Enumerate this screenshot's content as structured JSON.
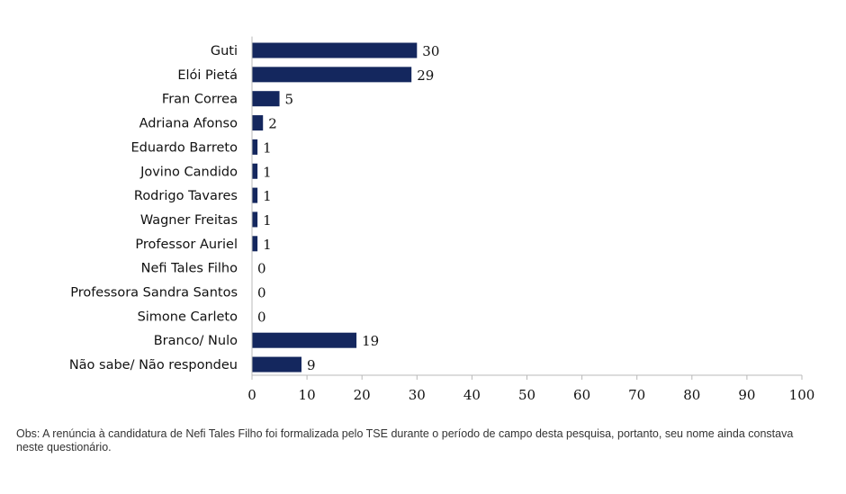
{
  "chart_data": {
    "type": "bar",
    "orientation": "horizontal",
    "categories": [
      "Guti",
      "Elói Pietá",
      "Fran Correa",
      "Adriana Afonso",
      "Eduardo Barreto",
      "Jovino Candido",
      "Rodrigo Tavares",
      "Wagner Freitas",
      "Professor Auriel",
      "Nefi Tales Filho",
      "Professora Sandra Santos",
      "Simone Carleto",
      "Branco/ Nulo",
      "Não sabe/ Não respondeu"
    ],
    "values": [
      30,
      29,
      5,
      2,
      1,
      1,
      1,
      1,
      1,
      0,
      0,
      0,
      19,
      9
    ],
    "xlim": [
      0,
      100
    ],
    "xticks": [
      0,
      10,
      20,
      30,
      40,
      50,
      60,
      70,
      80,
      90,
      100
    ],
    "title": "",
    "xlabel": "",
    "ylabel": "",
    "grid": false,
    "bar_color": "#14275e"
  },
  "note": "Obs: A renúncia à candidatura de Nefi Tales Filho foi formalizada pelo TSE durante o período de campo desta pesquisa, portanto, seu nome ainda constava neste questionário."
}
